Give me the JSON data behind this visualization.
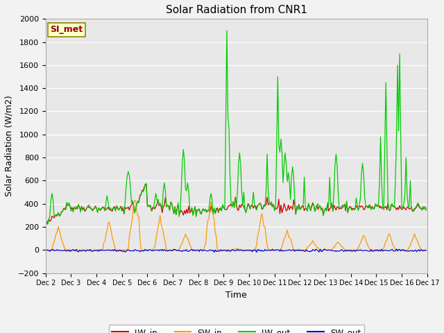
{
  "title": "Solar Radiation from CNR1",
  "ylabel": "Solar Radiation (W/m2)",
  "xlabel": "Time",
  "ylim": [
    -200,
    2000
  ],
  "xlim": [
    0,
    360
  ],
  "xtick_labels": [
    "Dec 2",
    "Dec 3",
    "Dec 4",
    "Dec 5",
    "Dec 6",
    "Dec 7",
    "Dec 8",
    "Dec 9",
    "Dec 10",
    "Dec 11",
    "Dec 12",
    "Dec 13",
    "Dec 14",
    "Dec 15",
    "Dec 16",
    "Dec 17"
  ],
  "xtick_positions": [
    0,
    24,
    48,
    72,
    96,
    120,
    144,
    168,
    192,
    216,
    240,
    264,
    288,
    312,
    336,
    360
  ],
  "legend_labels": [
    "LW_in",
    "SW_in",
    "LW_out",
    "SW_out"
  ],
  "legend_colors": [
    "#cc0000",
    "#ff9900",
    "#00cc00",
    "#0000cc"
  ],
  "si_met_label": "SI_met",
  "fig_facecolor": "#f2f2f2",
  "ax_facecolor": "#e8e8e8",
  "grid_color": "#ffffff",
  "title_fontsize": 11,
  "label_fontsize": 9,
  "tick_fontsize": 8,
  "ytick_values": [
    -200,
    0,
    200,
    400,
    600,
    800,
    1000,
    1200,
    1400,
    1600,
    1800,
    2000
  ]
}
